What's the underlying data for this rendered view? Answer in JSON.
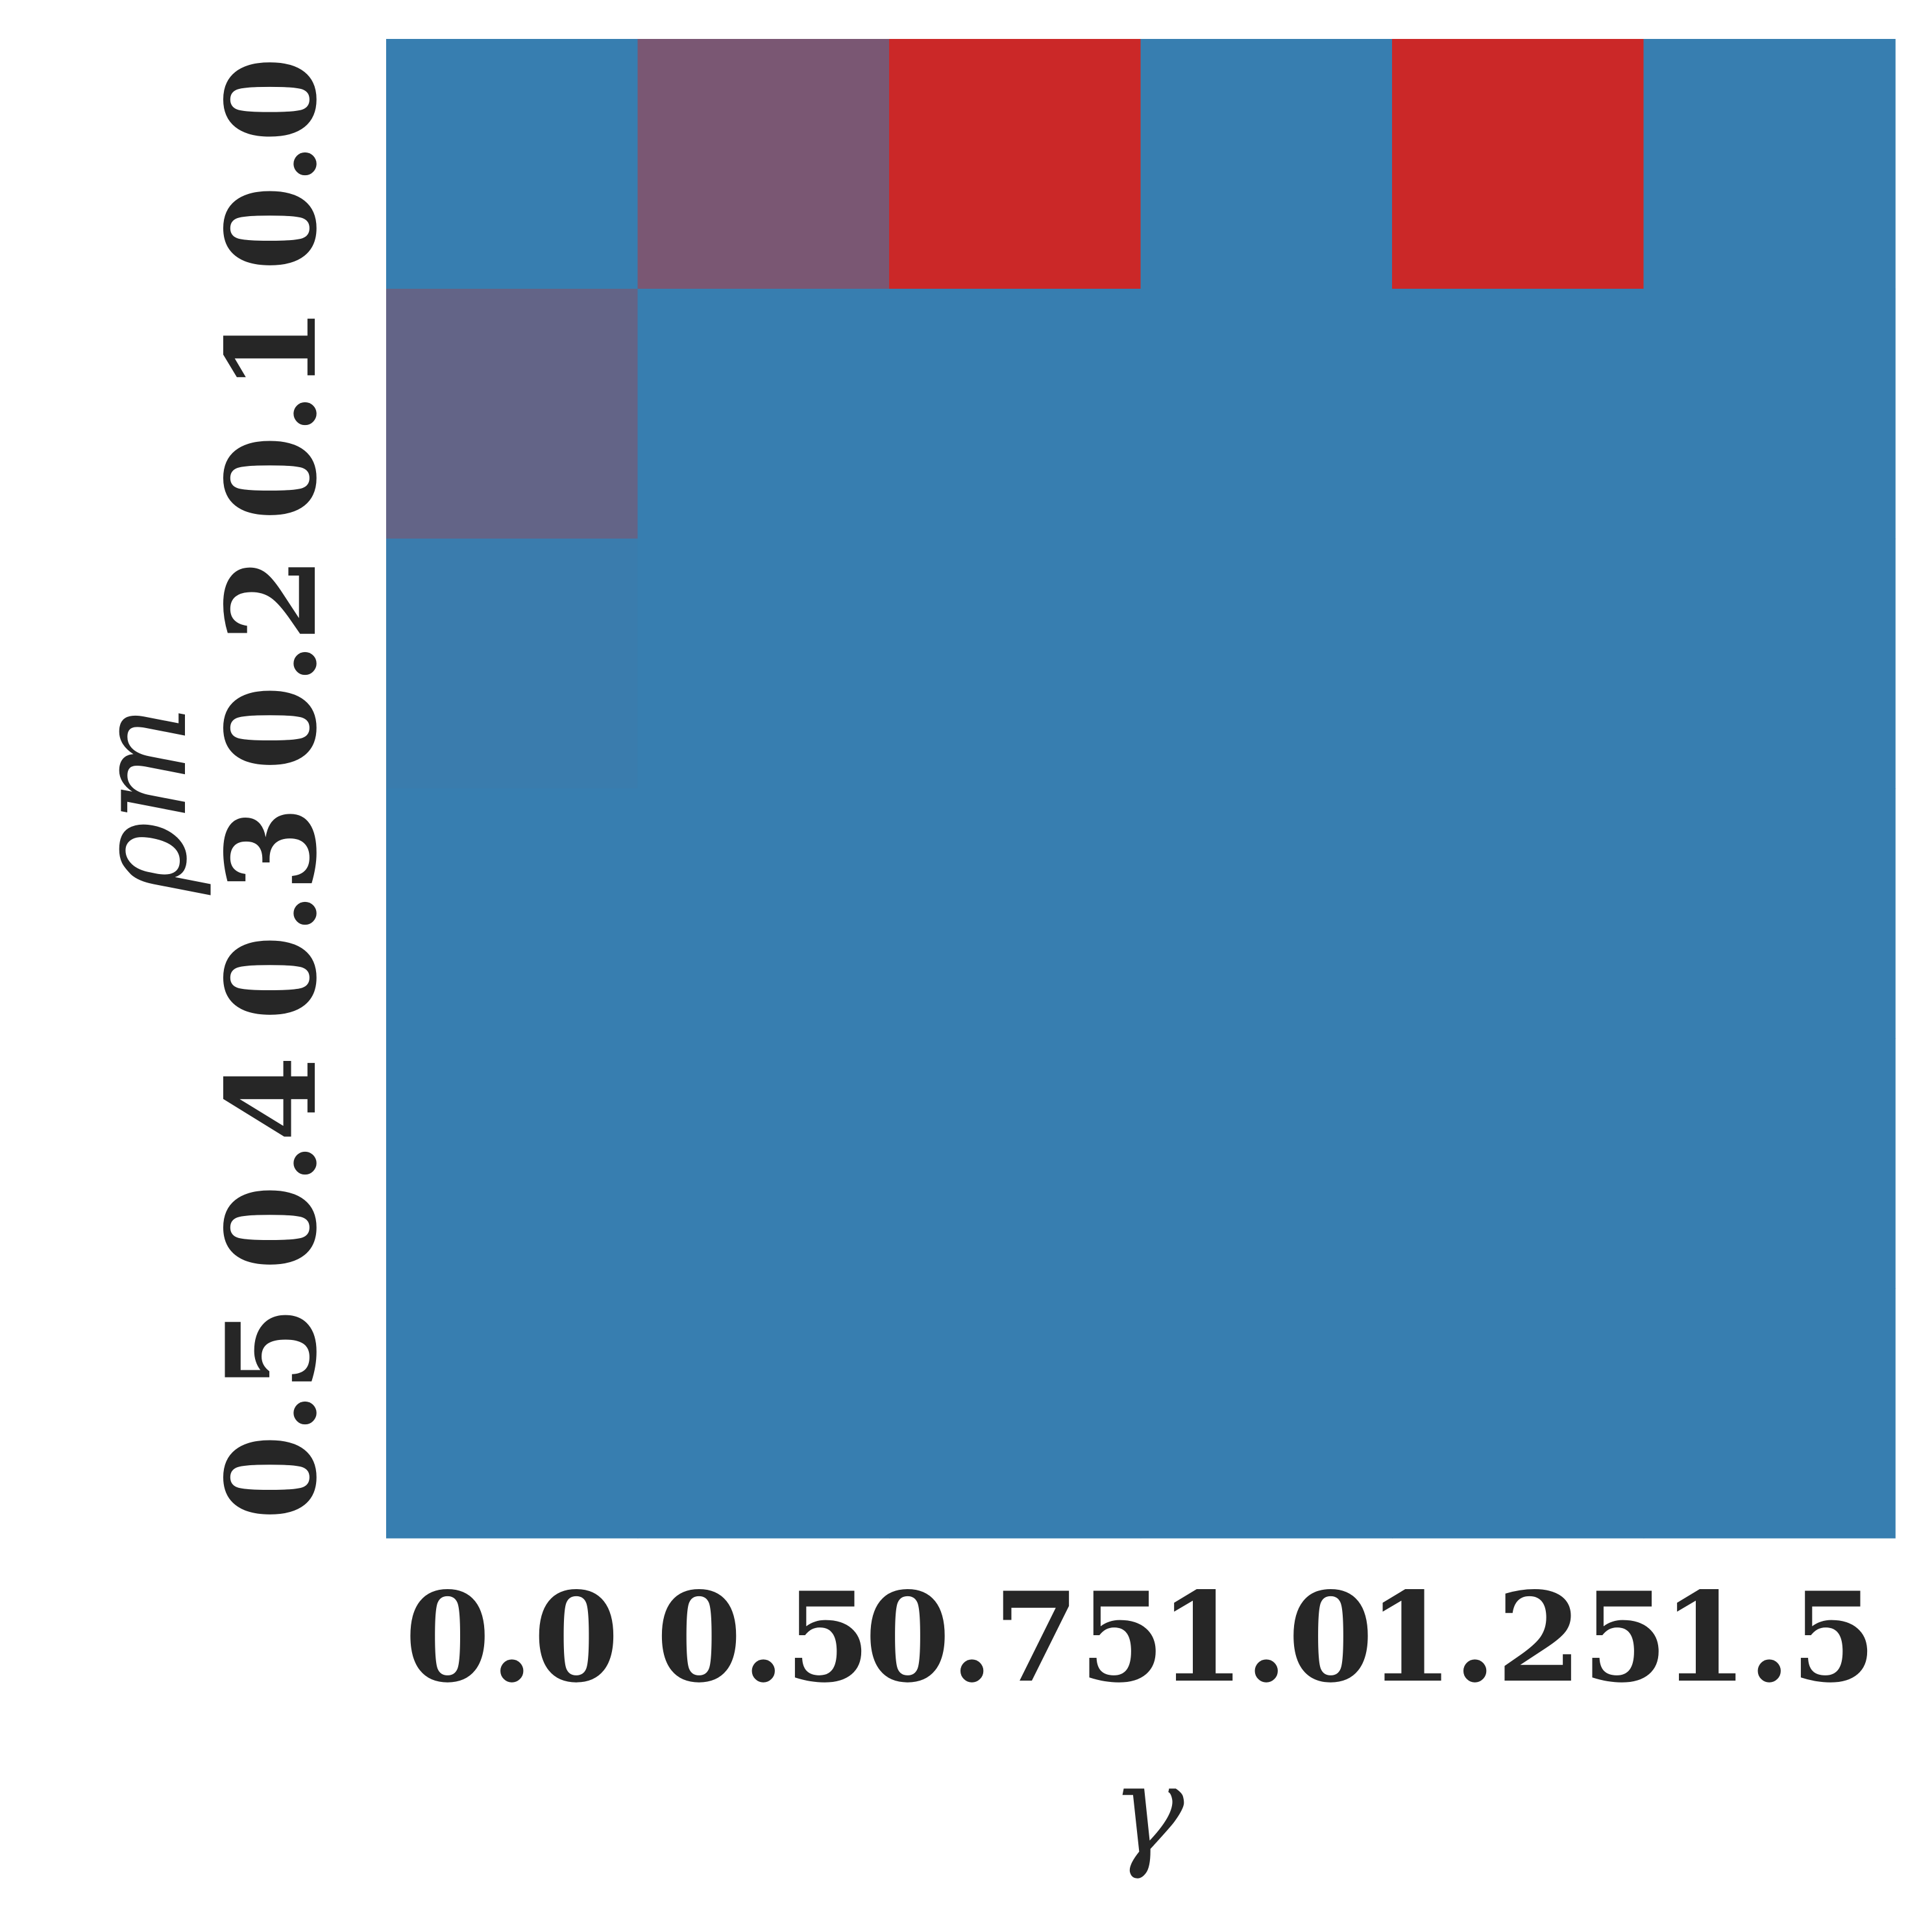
{
  "chart_data": {
    "type": "heatmap",
    "title": "",
    "xlabel": "γ",
    "ylabel": "ρm",
    "x_categories": [
      "0.0",
      "0.5",
      "0.75",
      "1.0",
      "1.25",
      "1.5"
    ],
    "y_categories": [
      "0.0",
      "0.1",
      "0.2",
      "0.3",
      "0.4",
      "0.5"
    ],
    "values": [
      [
        0.0,
        0.45,
        1.0,
        0.0,
        1.0,
        0.0
      ],
      [
        0.3,
        0.0,
        0.0,
        0.0,
        0.0,
        0.0
      ],
      [
        0.02,
        0.0,
        0.0,
        0.0,
        0.0,
        0.0
      ],
      [
        0.0,
        0.0,
        0.0,
        0.0,
        0.0,
        0.0
      ],
      [
        0.0,
        0.0,
        0.0,
        0.0,
        0.0,
        0.0
      ],
      [
        0.0,
        0.0,
        0.0,
        0.0,
        0.0,
        0.0
      ]
    ],
    "color_low": "#377eb0",
    "color_high": "#cb2828",
    "colorbar": false,
    "grid": false,
    "legend": "none"
  }
}
